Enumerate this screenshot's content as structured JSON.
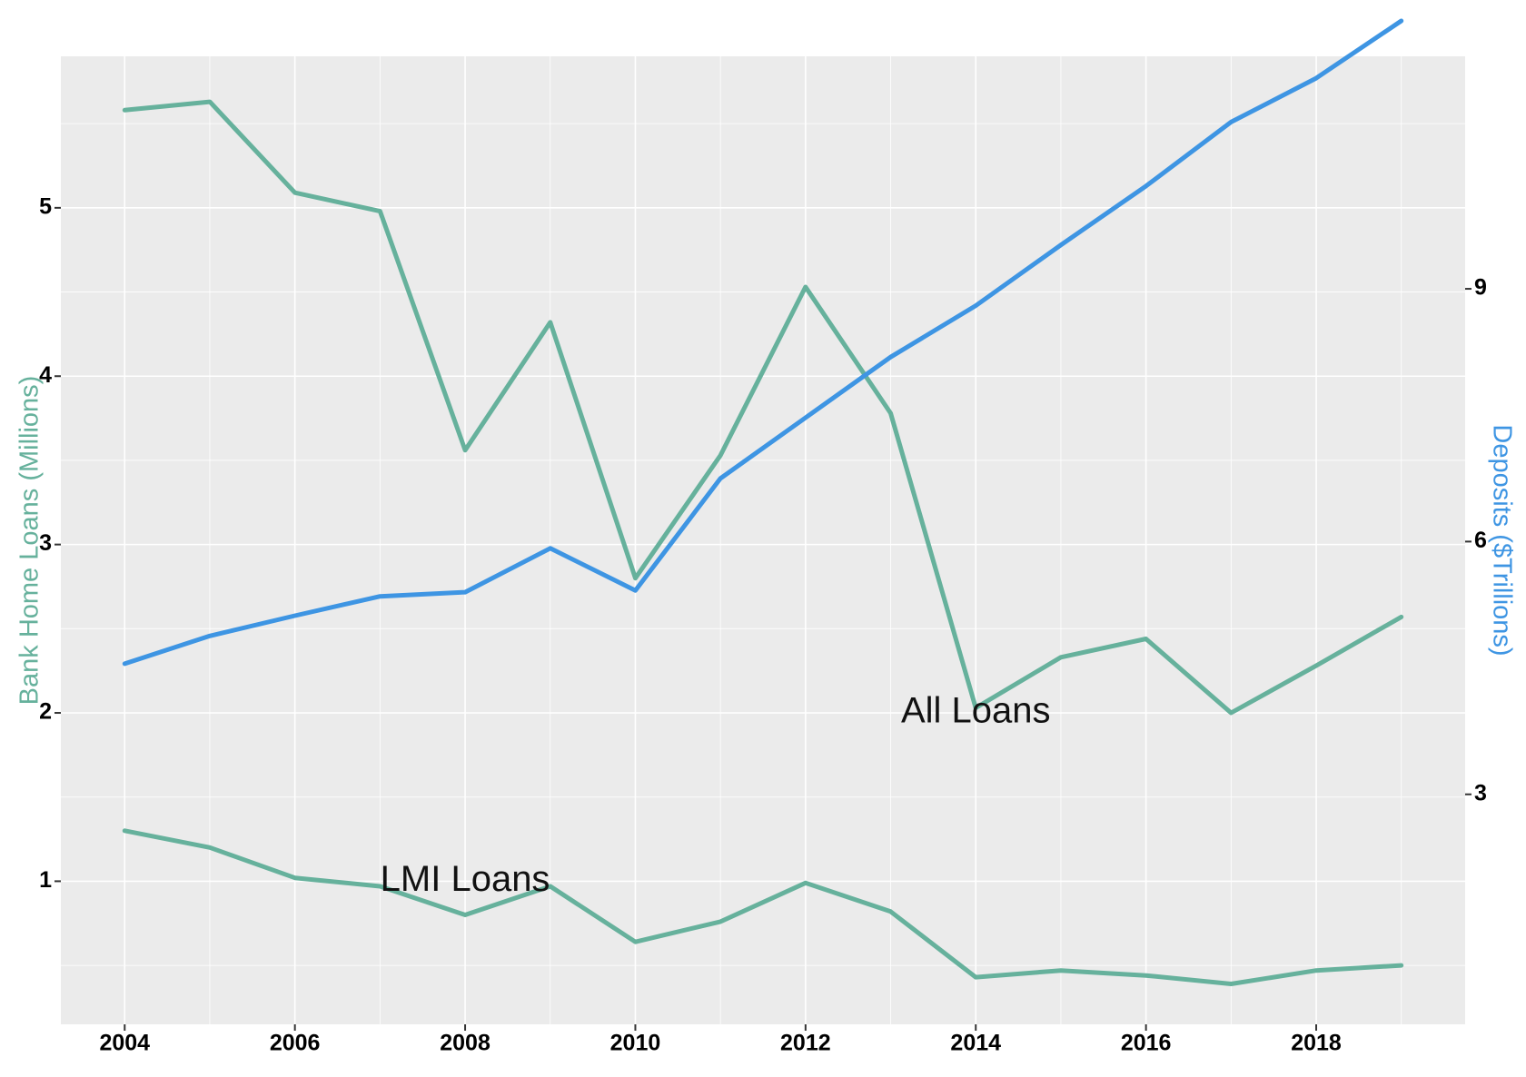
{
  "chart_data": {
    "type": "line",
    "x": [
      2004,
      2005,
      2006,
      2007,
      2008,
      2009,
      2010,
      2011,
      2012,
      2013,
      2014,
      2015,
      2016,
      2017,
      2018,
      2019
    ],
    "x_ticks": [
      "2004",
      "2006",
      "2008",
      "2010",
      "2012",
      "2014",
      "2016",
      "2018"
    ],
    "xlim": [
      2003.25,
      2019.75
    ],
    "ylabel": "Bank Home Loans (Millions)",
    "ylim": [
      0.15,
      5.9
    ],
    "y_ticks": [
      "1",
      "2",
      "3",
      "4",
      "5"
    ],
    "ylabel_right": "Deposits ($Trillions)",
    "ylim_right": [
      0.27,
      11.76
    ],
    "y_ticks_right": [
      "3",
      "6",
      "9"
    ],
    "grid": true,
    "series": [
      {
        "axis": "left",
        "color": "#66b19c",
        "values": [
          5.58,
          5.63,
          5.09,
          4.98,
          3.56,
          4.32,
          2.8,
          3.53,
          4.53,
          3.78,
          2.03,
          2.33,
          2.44,
          2.0,
          2.28,
          2.57
        ]
      },
      {
        "axis": "left",
        "color": "#66b19c",
        "values": [
          1.3,
          1.2,
          1.02,
          0.97,
          0.8,
          0.97,
          0.64,
          0.76,
          0.99,
          0.82,
          0.43,
          0.47,
          0.44,
          0.39,
          0.47,
          0.5
        ]
      },
      {
        "axis": "right",
        "color": "#3e95e3",
        "values": [
          4.55,
          4.88,
          5.12,
          5.35,
          5.4,
          5.92,
          5.42,
          6.75,
          7.47,
          8.19,
          8.8,
          9.52,
          10.22,
          10.98,
          11.5,
          12.18
        ]
      }
    ],
    "annotations": [
      {
        "text": "All Loans",
        "x": 2014.0,
        "y": 2.0
      },
      {
        "text": "LMI Loans",
        "x": 2008.0,
        "y": 1.0
      }
    ]
  }
}
